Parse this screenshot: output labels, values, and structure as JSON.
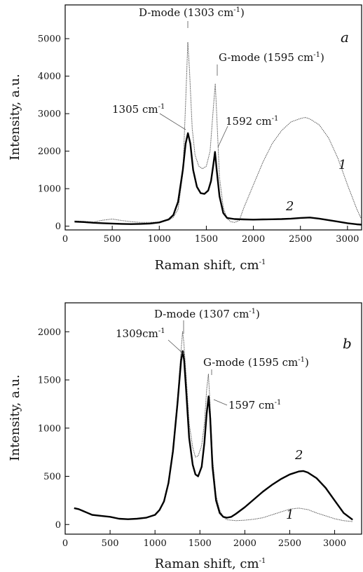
{
  "chart_data": [
    {
      "type": "line",
      "panel_label": "a",
      "xlabel": "Raman shift, cm",
      "xlabel_sup": "-1",
      "ylabel": "Intensity, a.u.",
      "xlim": [
        0,
        3150
      ],
      "ylim": [
        -100,
        5900
      ],
      "xticks": [
        0,
        500,
        1000,
        1500,
        2000,
        2500,
        3000
      ],
      "yticks": [
        0,
        1000,
        2000,
        3000,
        4000,
        5000
      ],
      "grid": false,
      "series": [
        {
          "name": "1",
          "color": "#555555",
          "points": [
            [
              100,
              140
            ],
            [
              200,
              130
            ],
            [
              300,
              110
            ],
            [
              400,
              160
            ],
            [
              500,
              190
            ],
            [
              600,
              150
            ],
            [
              700,
              120
            ],
            [
              800,
              100
            ],
            [
              900,
              100
            ],
            [
              1000,
              110
            ],
            [
              1100,
              160
            ],
            [
              1150,
              240
            ],
            [
              1200,
              450
            ],
            [
              1250,
              1400
            ],
            [
              1280,
              3300
            ],
            [
              1303,
              4900
            ],
            [
              1320,
              4200
            ],
            [
              1350,
              2600
            ],
            [
              1380,
              1900
            ],
            [
              1420,
              1600
            ],
            [
              1460,
              1530
            ],
            [
              1500,
              1600
            ],
            [
              1540,
              2000
            ],
            [
              1570,
              3000
            ],
            [
              1595,
              3800
            ],
            [
              1610,
              3000
            ],
            [
              1640,
              1300
            ],
            [
              1680,
              500
            ],
            [
              1720,
              200
            ],
            [
              1760,
              120
            ],
            [
              1800,
              100
            ],
            [
              1850,
              150
            ],
            [
              1900,
              500
            ],
            [
              2000,
              1100
            ],
            [
              2100,
              1700
            ],
            [
              2200,
              2200
            ],
            [
              2300,
              2550
            ],
            [
              2400,
              2780
            ],
            [
              2500,
              2870
            ],
            [
              2550,
              2900
            ],
            [
              2600,
              2860
            ],
            [
              2700,
              2700
            ],
            [
              2800,
              2350
            ],
            [
              2900,
              1800
            ],
            [
              3000,
              1100
            ],
            [
              3100,
              450
            ],
            [
              3150,
              180
            ]
          ]
        },
        {
          "name": "2",
          "color": "#000000",
          "points": [
            [
              100,
              120
            ],
            [
              200,
              110
            ],
            [
              300,
              90
            ],
            [
              400,
              80
            ],
            [
              500,
              70
            ],
            [
              600,
              60
            ],
            [
              700,
              55
            ],
            [
              800,
              60
            ],
            [
              900,
              70
            ],
            [
              1000,
              100
            ],
            [
              1100,
              180
            ],
            [
              1150,
              300
            ],
            [
              1200,
              650
            ],
            [
              1250,
              1500
            ],
            [
              1280,
              2200
            ],
            [
              1305,
              2480
            ],
            [
              1330,
              2200
            ],
            [
              1360,
              1500
            ],
            [
              1400,
              1050
            ],
            [
              1440,
              880
            ],
            [
              1480,
              860
            ],
            [
              1520,
              950
            ],
            [
              1550,
              1200
            ],
            [
              1575,
              1650
            ],
            [
              1592,
              1980
            ],
            [
              1610,
              1500
            ],
            [
              1640,
              800
            ],
            [
              1680,
              350
            ],
            [
              1720,
              220
            ],
            [
              1800,
              190
            ],
            [
              1900,
              180
            ],
            [
              2000,
              175
            ],
            [
              2100,
              180
            ],
            [
              2200,
              185
            ],
            [
              2300,
              190
            ],
            [
              2400,
              200
            ],
            [
              2500,
              220
            ],
            [
              2600,
              230
            ],
            [
              2700,
              200
            ],
            [
              2800,
              160
            ],
            [
              2900,
              120
            ],
            [
              3000,
              80
            ],
            [
              3100,
              50
            ],
            [
              3150,
              40
            ]
          ]
        }
      ],
      "annotations": {
        "d_mode": "D-mode (1303 cm",
        "d_mode_close": ")",
        "g_mode": "G-mode (1595 cm",
        "g_mode_close": ")",
        "peak_1305": "1305 cm",
        "peak_1592": "1592 cm",
        "sup": "-1",
        "label_1": "1",
        "label_2": "2"
      }
    },
    {
      "type": "line",
      "panel_label": "b",
      "xlabel": "Raman shift, cm",
      "xlabel_sup": "-1",
      "ylabel": "Intensity, a.u.",
      "xlim": [
        0,
        3300
      ],
      "ylim": [
        -100,
        2300
      ],
      "xticks": [
        0,
        500,
        1000,
        1500,
        2000,
        2500,
        3000
      ],
      "yticks": [
        0,
        500,
        1000,
        1500,
        2000
      ],
      "grid": false,
      "series": [
        {
          "name": "1",
          "color": "#555555",
          "points": [
            [
              100,
              170
            ],
            [
              150,
              165
            ],
            [
              200,
              140
            ],
            [
              300,
              100
            ],
            [
              400,
              90
            ],
            [
              500,
              80
            ],
            [
              600,
              60
            ],
            [
              700,
              55
            ],
            [
              800,
              60
            ],
            [
              900,
              70
            ],
            [
              1000,
              100
            ],
            [
              1050,
              150
            ],
            [
              1100,
              250
            ],
            [
              1150,
              450
            ],
            [
              1200,
              800
            ],
            [
              1250,
              1300
            ],
            [
              1290,
              1800
            ],
            [
              1307,
              2000
            ],
            [
              1320,
              1900
            ],
            [
              1350,
              1500
            ],
            [
              1380,
              1050
            ],
            [
              1420,
              800
            ],
            [
              1450,
              700
            ],
            [
              1480,
              710
            ],
            [
              1520,
              820
            ],
            [
              1550,
              1050
            ],
            [
              1575,
              1400
            ],
            [
              1595,
              1560
            ],
            [
              1610,
              1300
            ],
            [
              1640,
              700
            ],
            [
              1680,
              300
            ],
            [
              1720,
              150
            ],
            [
              1760,
              80
            ],
            [
              1800,
              50
            ],
            [
              1900,
              40
            ],
            [
              2000,
              45
            ],
            [
              2100,
              55
            ],
            [
              2200,
              70
            ],
            [
              2300,
              100
            ],
            [
              2400,
              130
            ],
            [
              2500,
              160
            ],
            [
              2600,
              170
            ],
            [
              2700,
              155
            ],
            [
              2800,
              120
            ],
            [
              2900,
              90
            ],
            [
              3000,
              60
            ],
            [
              3100,
              40
            ],
            [
              3200,
              30
            ]
          ]
        },
        {
          "name": "2",
          "color": "#000000",
          "points": [
            [
              100,
              170
            ],
            [
              150,
              160
            ],
            [
              200,
              140
            ],
            [
              300,
              100
            ],
            [
              400,
              90
            ],
            [
              500,
              80
            ],
            [
              600,
              60
            ],
            [
              700,
              55
            ],
            [
              800,
              60
            ],
            [
              900,
              70
            ],
            [
              1000,
              100
            ],
            [
              1050,
              150
            ],
            [
              1100,
              240
            ],
            [
              1150,
              430
            ],
            [
              1200,
              760
            ],
            [
              1250,
              1250
            ],
            [
              1290,
              1700
            ],
            [
              1309,
              1800
            ],
            [
              1325,
              1700
            ],
            [
              1350,
              1350
            ],
            [
              1380,
              900
            ],
            [
              1420,
              620
            ],
            [
              1450,
              520
            ],
            [
              1480,
              500
            ],
            [
              1520,
              600
            ],
            [
              1550,
              850
            ],
            [
              1575,
              1150
            ],
            [
              1597,
              1330
            ],
            [
              1615,
              1100
            ],
            [
              1640,
              600
            ],
            [
              1680,
              250
            ],
            [
              1720,
              120
            ],
            [
              1760,
              80
            ],
            [
              1800,
              70
            ],
            [
              1850,
              80
            ],
            [
              1900,
              110
            ],
            [
              2000,
              180
            ],
            [
              2100,
              260
            ],
            [
              2200,
              340
            ],
            [
              2300,
              410
            ],
            [
              2400,
              470
            ],
            [
              2500,
              520
            ],
            [
              2600,
              550
            ],
            [
              2650,
              555
            ],
            [
              2700,
              540
            ],
            [
              2800,
              480
            ],
            [
              2900,
              380
            ],
            [
              3000,
              250
            ],
            [
              3100,
              120
            ],
            [
              3200,
              50
            ]
          ]
        }
      ],
      "annotations": {
        "d_mode": "D-mode (1307 cm",
        "d_mode_close": ")",
        "g_mode": "G-mode (1595 cm",
        "g_mode_close": ")",
        "peak_1309": "1309cm",
        "peak_1597": "1597 cm",
        "sup": "-1",
        "label_1": "1",
        "label_2": "2"
      }
    }
  ]
}
